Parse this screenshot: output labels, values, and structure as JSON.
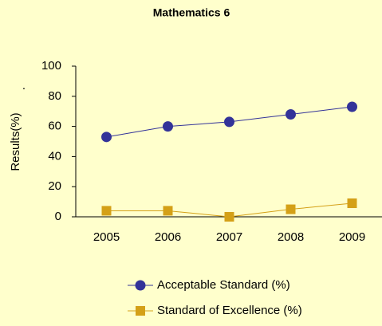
{
  "chart_data": {
    "type": "line",
    "title": "Mathematics 6",
    "y_label": "Results(%)",
    "annotation": ".",
    "categories": [
      "2005",
      "2006",
      "2007",
      "2008",
      "2009"
    ],
    "series": [
      {
        "name": "Acceptable Standard (%)",
        "color": "#333399",
        "values": [
          53,
          60,
          63,
          68,
          73
        ]
      },
      {
        "name": "Standard of Excellence (%)",
        "color": "#D4A017",
        "values": [
          4,
          4,
          0,
          5,
          9
        ]
      }
    ],
    "ylim": [
      0,
      100
    ],
    "yticks": [
      0,
      20,
      40,
      60,
      80,
      100
    ],
    "grid": false
  }
}
